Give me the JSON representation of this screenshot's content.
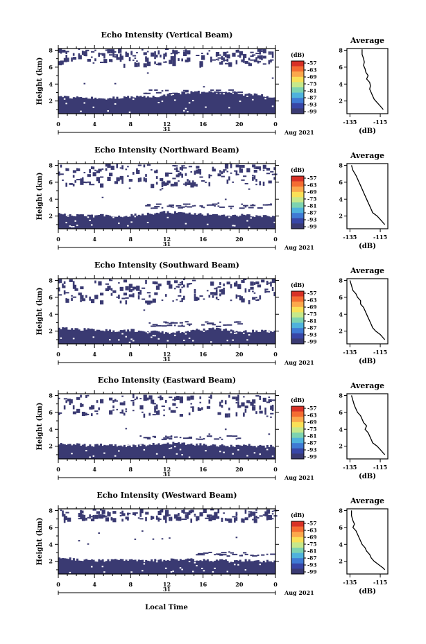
{
  "figure": {
    "xlabel": "Local Time",
    "x_ticks": [
      "0",
      "4",
      "8",
      "12",
      "16",
      "20",
      "0"
    ],
    "date_tick": "31",
    "date_label": "Aug 2021",
    "ylabel": "Height (km)",
    "y_ticks": [
      "2",
      "4",
      "6",
      "8"
    ],
    "colorbar_unit": "(dB)",
    "colorbar_ticks": [
      "-57",
      "-63",
      "-69",
      "-75",
      "-81",
      "-87",
      "-93",
      "-99"
    ],
    "colorbar_colors": [
      "#d83126",
      "#f46c32",
      "#fba84c",
      "#f9e057",
      "#c6e88a",
      "#7dd3b0",
      "#4fb2dc",
      "#3f7ad4",
      "#3846a6",
      "#3a3a72"
    ],
    "mask_color": "#3a3a72",
    "profile_title": "Average",
    "profile_xlabel": "(dB)",
    "profile_x_ticks": [
      "-135",
      "-115"
    ],
    "profile_y_ticks": [
      "2",
      "4",
      "6",
      "8"
    ]
  },
  "chart_data": [
    {
      "type": "heatmap",
      "title": "Echo Intensity (Vertical Beam)",
      "xlabel": "Local Time",
      "ylabel": "Height (km)",
      "xlim": [
        0,
        24
      ],
      "ylim": [
        0.5,
        8.2
      ],
      "color_label": "(dB)",
      "color_range": [
        -99,
        -57
      ],
      "low_layer_top_km": [
        2.5,
        2.5,
        2.4,
        2.4,
        2.3,
        2.3,
        2.4,
        2.4,
        2.5,
        2.6,
        2.5,
        2.6,
        2.7,
        2.9,
        3.0,
        3.1,
        3.0,
        3.1,
        2.9,
        3.0,
        2.8,
        2.8,
        2.7,
        2.6,
        2.5
      ],
      "mid_band_km": [
        [
          2.6,
          3.4
        ],
        [
          9,
          20
        ]
      ],
      "upper_echo_km": [
        6.4,
        8.2
      ],
      "upper_echo_density": 0.35,
      "profile": {
        "title": "Average",
        "xlabel": "(dB)",
        "xlim": [
          -137,
          -110
        ],
        "x_db": [
          -127,
          -127,
          -126,
          -125.5,
          -126,
          -125,
          -124.5,
          -123,
          -124,
          -122,
          -121.5,
          -122,
          -121,
          -120,
          -119,
          -117,
          -115,
          -113
        ],
        "y_km": [
          8.1,
          7.5,
          7,
          6.6,
          6.2,
          5.8,
          5.4,
          5.0,
          4.6,
          4.2,
          3.8,
          3.4,
          3.0,
          2.6,
          2.2,
          1.8,
          1.4,
          1.0
        ]
      }
    },
    {
      "type": "heatmap",
      "title": "Echo Intensity (Northward Beam)",
      "xlabel": "Local Time",
      "ylabel": "Height (km)",
      "xlim": [
        0,
        24
      ],
      "ylim": [
        0.5,
        8.2
      ],
      "color_label": "(dB)",
      "color_range": [
        -99,
        -57
      ],
      "low_layer_top_km": [
        2.2,
        2.1,
        2.1,
        2.0,
        2.0,
        2.1,
        2.0,
        2.0,
        2.1,
        2.2,
        2.3,
        2.4,
        2.5,
        2.4,
        2.3,
        2.3,
        2.2,
        2.2,
        2.1,
        2.0,
        2.1,
        2.1,
        2.0,
        2.0,
        2.0
      ],
      "mid_band_km": [
        [
          3.0,
          3.5
        ],
        [
          9,
          24
        ]
      ],
      "upper_echo_km": [
        5.8,
        8.2
      ],
      "upper_echo_density": 0.3,
      "profile": {
        "title": "Average",
        "xlabel": "(dB)",
        "xlim": [
          -137,
          -110
        ],
        "x_db": [
          -134,
          -133,
          -131,
          -130,
          -129,
          -128,
          -127,
          -126,
          -125,
          -124,
          -123,
          -122,
          -121,
          -120,
          -117,
          -115,
          -113,
          -112
        ],
        "y_km": [
          8.0,
          7.4,
          6.8,
          6.4,
          6.0,
          5.6,
          5.2,
          4.8,
          4.4,
          4.0,
          3.6,
          3.2,
          2.8,
          2.4,
          2.0,
          1.6,
          1.2,
          1.0
        ]
      }
    },
    {
      "type": "heatmap",
      "title": "Echo Intensity (Southward Beam)",
      "xlabel": "Local Time",
      "ylabel": "Height (km)",
      "xlim": [
        0,
        24
      ],
      "ylim": [
        0.5,
        8.2
      ],
      "color_label": "(dB)",
      "color_range": [
        -99,
        -57
      ],
      "low_layer_top_km": [
        2.3,
        2.3,
        2.2,
        2.2,
        2.1,
        2.1,
        2.0,
        2.0,
        2.1,
        2.0,
        1.9,
        1.9,
        1.8,
        1.9,
        2.0,
        2.1,
        2.2,
        2.3,
        2.2,
        2.1,
        2.0,
        2.0,
        2.0,
        2.0,
        2.0
      ],
      "mid_band_km": [
        [
          2.6,
          3.2
        ],
        [
          10,
          20
        ]
      ],
      "upper_echo_km": [
        5.6,
        8.2
      ],
      "upper_echo_density": 0.3,
      "profile": {
        "title": "Average",
        "xlabel": "(dB)",
        "xlim": [
          -137,
          -110
        ],
        "x_db": [
          -135,
          -134,
          -133,
          -131,
          -130,
          -128,
          -128,
          -126,
          -125,
          -124,
          -123,
          -122,
          -121,
          -120,
          -118,
          -115,
          -113,
          -112
        ],
        "y_km": [
          8.0,
          7.4,
          6.8,
          6.4,
          6.0,
          5.6,
          5.2,
          4.8,
          4.4,
          4.0,
          3.6,
          3.2,
          2.8,
          2.4,
          2.0,
          1.6,
          1.2,
          1.0
        ]
      }
    },
    {
      "type": "heatmap",
      "title": "Echo Intensity (Eastward Beam)",
      "xlabel": "Local Time",
      "ylabel": "Height (km)",
      "xlim": [
        0,
        24
      ],
      "ylim": [
        0.5,
        8.2
      ],
      "color_label": "(dB)",
      "color_range": [
        -99,
        -57
      ],
      "low_layer_top_km": [
        2.3,
        2.2,
        2.2,
        2.1,
        2.1,
        2.2,
        2.1,
        2.1,
        2.0,
        2.1,
        2.2,
        2.3,
        2.4,
        2.3,
        2.3,
        2.2,
        2.2,
        2.1,
        2.1,
        2.0,
        2.1,
        2.1,
        2.0,
        2.0,
        2.0
      ],
      "mid_band_km": [
        [
          2.8,
          3.3
        ],
        [
          9,
          20
        ]
      ],
      "upper_echo_km": [
        5.8,
        8.2
      ],
      "upper_echo_density": 0.35,
      "profile": {
        "title": "Average",
        "xlabel": "(dB)",
        "xlim": [
          -137,
          -110
        ],
        "x_db": [
          -134,
          -133,
          -132,
          -131,
          -130,
          -128,
          -127,
          -126,
          -124,
          -125,
          -123,
          -122,
          -121,
          -120,
          -117,
          -115,
          -113,
          -112
        ],
        "y_km": [
          8.0,
          7.4,
          6.8,
          6.4,
          6.0,
          5.6,
          5.2,
          4.8,
          4.4,
          4.0,
          3.6,
          3.2,
          2.8,
          2.4,
          2.0,
          1.6,
          1.2,
          1.0
        ]
      }
    },
    {
      "type": "heatmap",
      "title": "Echo Intensity (Westward Beam)",
      "xlabel": "Local Time",
      "ylabel": "Height (km)",
      "xlim": [
        0,
        24
      ],
      "ylim": [
        0.5,
        8.2
      ],
      "color_label": "(dB)",
      "color_range": [
        -99,
        -57
      ],
      "low_layer_top_km": [
        2.3,
        2.3,
        2.2,
        2.2,
        2.1,
        2.1,
        2.2,
        2.2,
        2.1,
        2.0,
        2.1,
        2.1,
        2.2,
        2.2,
        2.3,
        2.2,
        2.2,
        2.1,
        2.1,
        2.0,
        2.1,
        2.1,
        2.0,
        2.0,
        2.0
      ],
      "mid_band_km": [
        [
          2.7,
          3.2
        ],
        [
          15,
          24
        ]
      ],
      "upper_echo_km": [
        7.0,
        8.2
      ],
      "upper_echo_density": 0.3,
      "profile": {
        "title": "Average",
        "xlabel": "(dB)",
        "xlim": [
          -137,
          -110
        ],
        "x_db": [
          -134,
          -134,
          -133,
          -132,
          -133,
          -131,
          -130,
          -129,
          -128,
          -127,
          -125,
          -124,
          -122,
          -121,
          -119,
          -116,
          -113,
          -112
        ],
        "y_km": [
          8.0,
          7.4,
          6.8,
          6.4,
          6.0,
          5.6,
          5.2,
          4.8,
          4.4,
          4.0,
          3.6,
          3.2,
          2.8,
          2.4,
          2.0,
          1.6,
          1.2,
          1.0
        ]
      }
    }
  ]
}
